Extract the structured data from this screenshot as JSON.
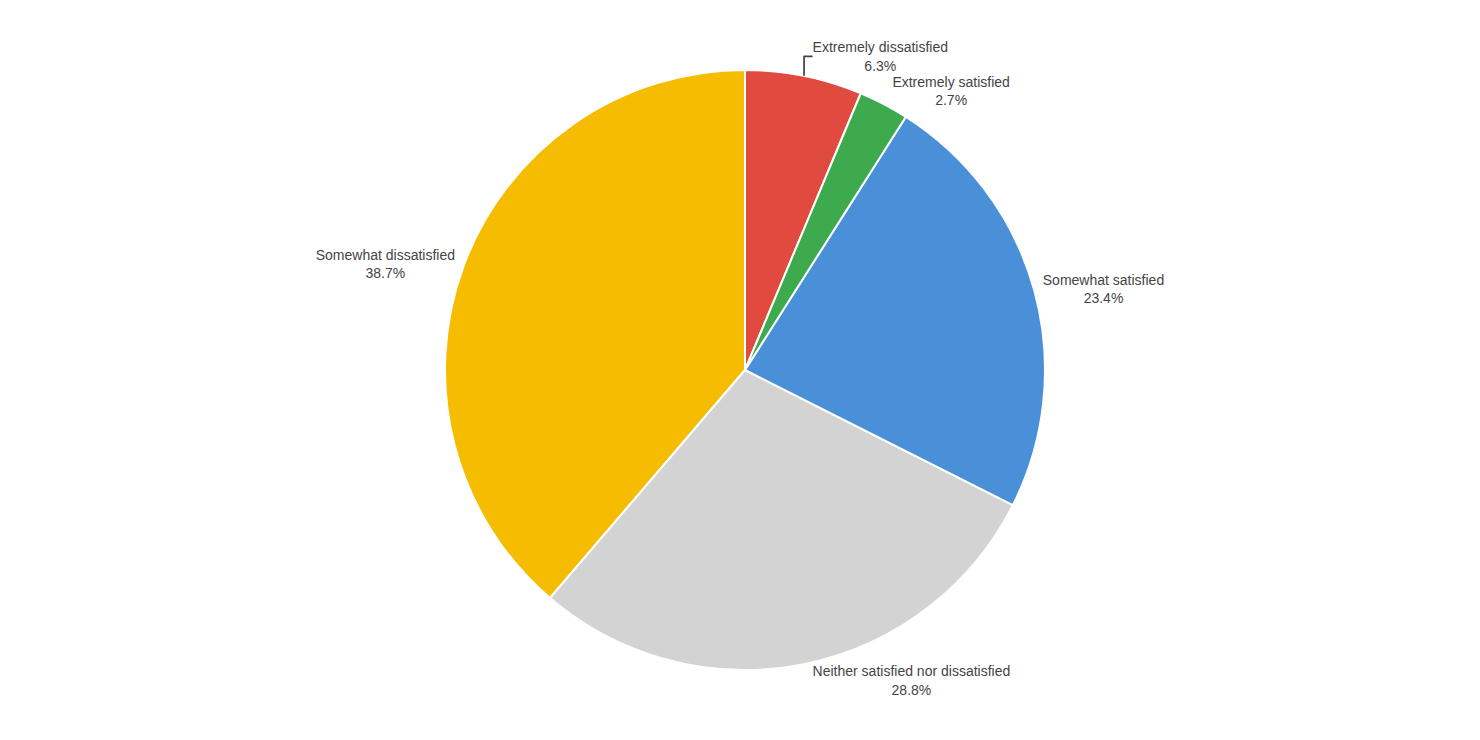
{
  "chart_data": {
    "type": "pie",
    "categories": [
      "Extremely dissatisfied",
      "Somewhat dissatisfied",
      "Neither satisfied nor dissatisfied",
      "Somewhat satisfied",
      "Extremely satisfied"
    ],
    "values": [
      6.3,
      38.7,
      28.8,
      23.4,
      2.7
    ],
    "value_labels": [
      "6.3%",
      "38.7%",
      "28.8%",
      "23.4%",
      "2.7%"
    ],
    "colors": [
      "#e04a3f",
      "#f5bc00",
      "#d3d3d3",
      "#4a90d9",
      "#3daa4e"
    ],
    "data_labels": true
  }
}
